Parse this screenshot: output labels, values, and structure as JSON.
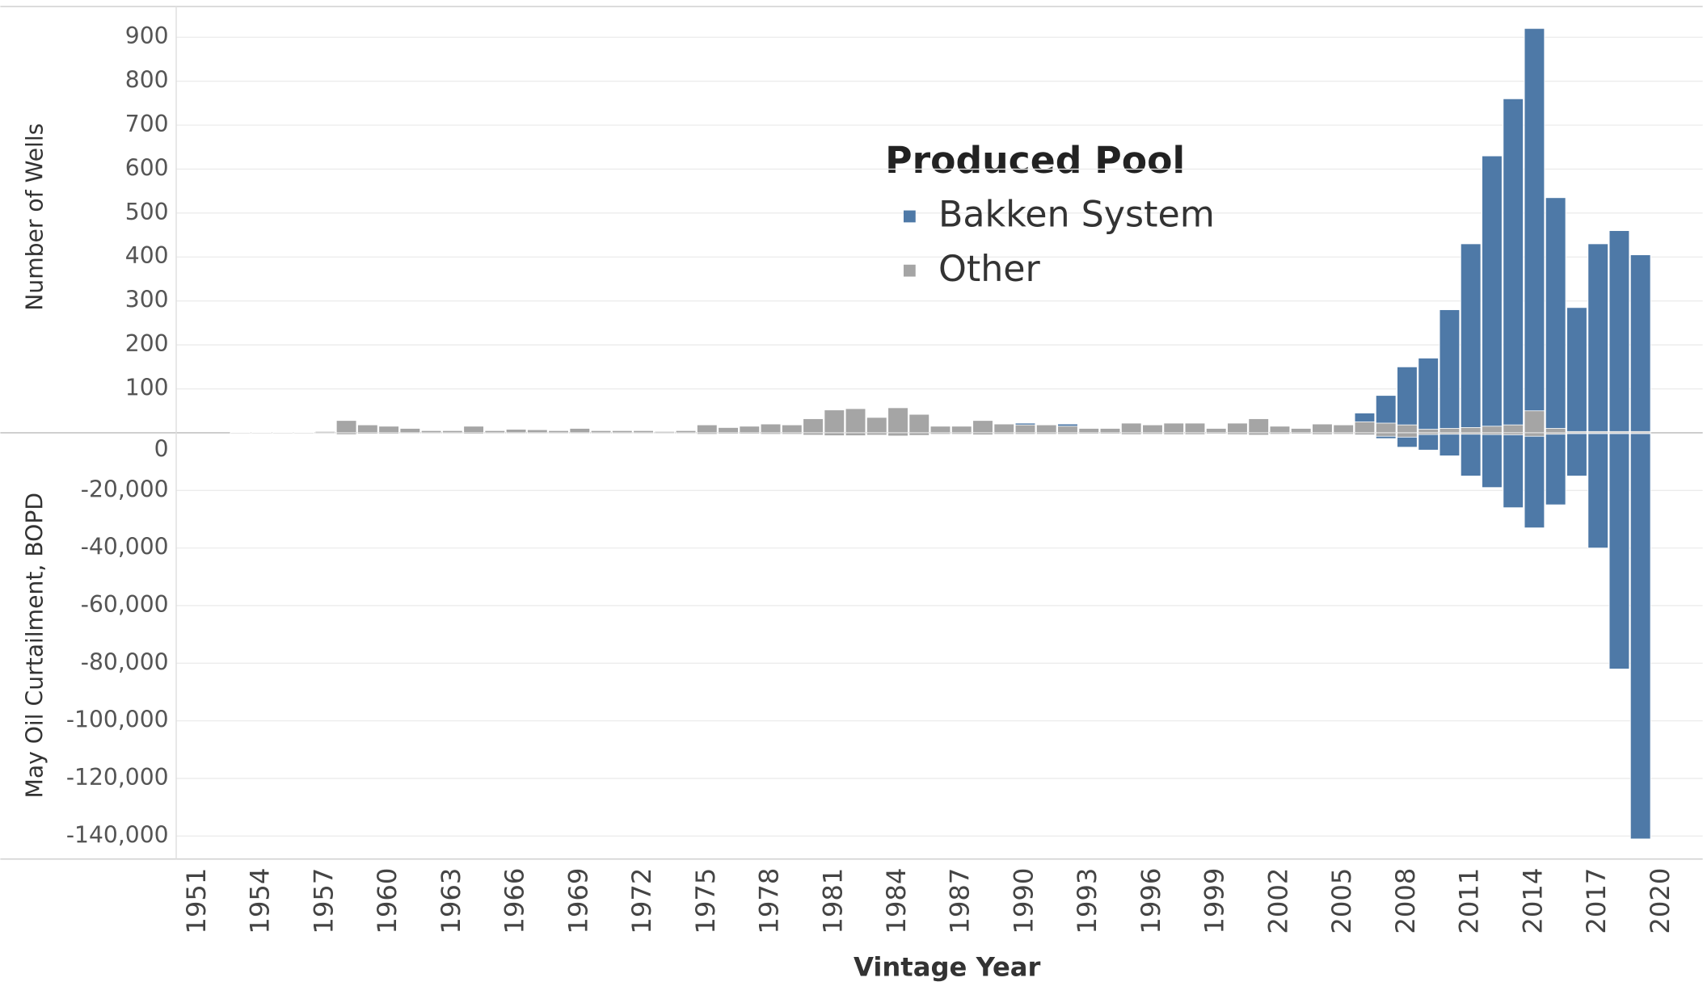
{
  "chart_data": [
    {
      "type": "bar",
      "y_label": "Number of Wells",
      "legend_title": "Produced Pool",
      "legend_position": "top-center",
      "ylim": [
        0,
        970
      ],
      "yticks": [
        100,
        200,
        300,
        400,
        500,
        600,
        700,
        800,
        900
      ],
      "grid": true,
      "series": [
        {
          "name": "Bakken System",
          "color": "#4e79a7",
          "values": [
            null,
            null,
            null,
            null,
            null,
            null,
            null,
            null,
            null,
            null,
            null,
            null,
            null,
            null,
            null,
            null,
            null,
            null,
            null,
            null,
            null,
            null,
            null,
            null,
            null,
            null,
            null,
            null,
            null,
            null,
            null,
            null,
            null,
            null,
            null,
            null,
            null,
            null,
            null,
            22,
            null,
            20,
            null,
            null,
            null,
            null,
            null,
            null,
            null,
            null,
            null,
            null,
            null,
            null,
            null,
            45,
            85,
            150,
            170,
            280,
            430,
            630,
            760,
            920,
            535,
            285,
            430,
            460,
            405,
            null
          ]
        },
        {
          "name": "Other",
          "color": "#a5a5a5",
          "values": [
            null,
            null,
            1,
            1,
            1,
            1,
            3,
            28,
            18,
            15,
            10,
            5,
            5,
            15,
            5,
            8,
            7,
            5,
            10,
            5,
            5,
            5,
            3,
            5,
            18,
            12,
            15,
            20,
            18,
            32,
            52,
            55,
            35,
            57,
            42,
            15,
            15,
            28,
            20,
            18,
            18,
            15,
            10,
            10,
            22,
            18,
            22,
            22,
            10,
            22,
            32,
            15,
            10,
            20,
            18,
            25,
            22,
            18,
            8,
            10,
            12,
            15,
            18,
            50,
            10,
            3,
            3,
            3,
            3,
            null
          ]
        }
      ]
    },
    {
      "type": "bar",
      "y_label": "May Oil Curtailment, BOPD",
      "x_label": "Vintage Year",
      "categories": [
        "1951",
        null,
        null,
        "1954",
        null,
        null,
        "1957",
        null,
        null,
        "1960",
        null,
        null,
        "1963",
        null,
        null,
        "1966",
        null,
        null,
        "1969",
        null,
        null,
        "1972",
        null,
        null,
        "1975",
        null,
        null,
        "1978",
        null,
        null,
        "1981",
        null,
        null,
        "1984",
        null,
        null,
        "1987",
        null,
        null,
        "1990",
        null,
        null,
        "1993",
        null,
        null,
        "1996",
        null,
        null,
        "1999",
        null,
        null,
        "2002",
        null,
        null,
        "2005",
        null,
        null,
        "2008",
        null,
        null,
        "2011",
        null,
        null,
        "2014",
        null,
        null,
        "2017",
        null,
        null,
        "2020"
      ],
      "ylim": [
        -148000,
        0
      ],
      "grid": true,
      "yticks": [
        0,
        {
          "value": -20000,
          "label": "-20,000"
        },
        {
          "value": -40000,
          "label": "-40,000"
        },
        {
          "value": -60000,
          "label": "-60,000"
        },
        {
          "value": -80000,
          "label": "-80,000"
        },
        {
          "value": -100000,
          "label": "-100,000"
        },
        {
          "value": -120000,
          "label": "-120,000"
        },
        {
          "value": -140000,
          "label": "-140,000"
        }
      ],
      "series": [
        {
          "name": "Bakken System",
          "color": "#4e79a7",
          "values": [
            null,
            null,
            null,
            null,
            null,
            null,
            null,
            null,
            null,
            null,
            null,
            null,
            null,
            null,
            null,
            null,
            null,
            null,
            null,
            null,
            null,
            null,
            null,
            null,
            null,
            null,
            null,
            null,
            null,
            null,
            null,
            null,
            null,
            null,
            null,
            null,
            null,
            null,
            null,
            -300,
            null,
            -300,
            null,
            null,
            null,
            null,
            null,
            null,
            null,
            null,
            null,
            null,
            null,
            null,
            null,
            -900,
            -2000,
            -5000,
            -6000,
            -8000,
            -15000,
            -19000,
            -26000,
            -33000,
            -25000,
            -15000,
            -40000,
            -82000,
            -141000,
            null
          ]
        },
        {
          "name": "Other",
          "color": "#a5a5a5",
          "values": [
            null,
            null,
            -100,
            -100,
            -100,
            -100,
            -200,
            -600,
            -400,
            -400,
            -300,
            -200,
            -200,
            -400,
            -200,
            -300,
            -200,
            -200,
            -300,
            -200,
            -200,
            -200,
            -100,
            -200,
            -500,
            -400,
            -400,
            -500,
            -500,
            -800,
            -1000,
            -1000,
            -800,
            -1100,
            -900,
            -500,
            -500,
            -700,
            -500,
            -500,
            -500,
            -500,
            -400,
            -400,
            -600,
            -500,
            -600,
            -600,
            -400,
            -600,
            -800,
            -500,
            -400,
            -600,
            -500,
            -700,
            -1200,
            -1500,
            -600,
            -500,
            -500,
            -600,
            -700,
            -1200,
            -500,
            -200,
            -200,
            -200,
            -200,
            null
          ]
        }
      ]
    }
  ]
}
